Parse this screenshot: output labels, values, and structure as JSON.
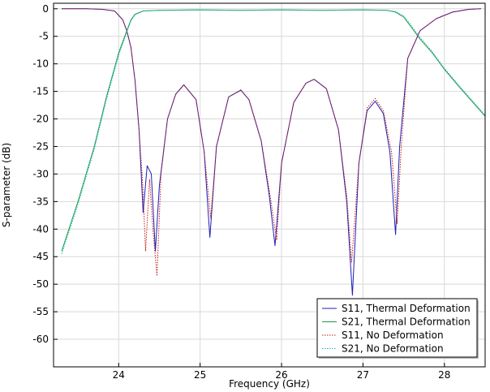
{
  "chart_data": {
    "type": "line",
    "title": "",
    "xlabel": "Frequency (GHz)",
    "ylabel": "S-parameter (dB)",
    "xlim": [
      23.2,
      28.5
    ],
    "ylim": [
      -65,
      1
    ],
    "x_ticks": [
      24,
      25,
      26,
      27,
      28
    ],
    "y_ticks": [
      0,
      -5,
      -10,
      -15,
      -20,
      -25,
      -30,
      -35,
      -40,
      -45,
      -50,
      -55,
      -60
    ],
    "x_tick_labels": [
      "24",
      "25",
      "26",
      "27",
      "28"
    ],
    "y_tick_labels": [
      "0",
      "-5",
      "-10",
      "-15",
      "-20",
      "-25",
      "-30",
      "-35",
      "-40",
      "-45",
      "-50",
      "-55",
      "-60"
    ],
    "grid": true,
    "legend_position": "bottom-right",
    "series": [
      {
        "name": "S11, Thermal Deformation",
        "color": "#1f1fb4",
        "style": "solid",
        "x": [
          23.3,
          23.6,
          23.8,
          23.95,
          24.05,
          24.1,
          24.15,
          24.2,
          24.25,
          24.3,
          24.35,
          24.4,
          24.45,
          24.5,
          24.6,
          24.7,
          24.8,
          24.95,
          25.05,
          25.12,
          25.2,
          25.35,
          25.5,
          25.6,
          25.75,
          25.85,
          25.92,
          26.0,
          26.15,
          26.3,
          26.4,
          26.55,
          26.7,
          26.8,
          26.87,
          26.95,
          27.05,
          27.15,
          27.25,
          27.33,
          27.4,
          27.45,
          27.55,
          27.7,
          27.9,
          28.1,
          28.3,
          28.45
        ],
        "y": [
          0,
          0,
          -0.1,
          -0.4,
          -2,
          -4,
          -7,
          -13,
          -22,
          -37,
          -28.5,
          -30,
          -44,
          -32,
          -20,
          -15.5,
          -13.8,
          -16.5,
          -26,
          -41.5,
          -25,
          -16,
          -14.8,
          -16.5,
          -24,
          -34,
          -43,
          -28,
          -17,
          -13.5,
          -12.8,
          -14.5,
          -22,
          -35,
          -52,
          -28,
          -18.5,
          -16.8,
          -19,
          -26,
          -41,
          -25,
          -9,
          -4,
          -1.8,
          -0.6,
          -0.1,
          0
        ]
      },
      {
        "name": "S21, Thermal Deformation",
        "color": "#1e9a46",
        "style": "solid",
        "x": [
          23.3,
          23.5,
          23.7,
          23.85,
          24.0,
          24.1,
          24.15,
          24.2,
          24.3,
          24.5,
          25.0,
          25.5,
          26.0,
          26.5,
          27.0,
          27.3,
          27.4,
          27.5,
          27.6,
          27.7,
          27.85,
          28.0,
          28.2,
          28.5
        ],
        "y": [
          -44,
          -35,
          -25,
          -16,
          -8,
          -4,
          -2,
          -1,
          -0.4,
          -0.3,
          -0.2,
          -0.3,
          -0.2,
          -0.3,
          -0.2,
          -0.3,
          -0.6,
          -1.5,
          -3.5,
          -5.5,
          -8,
          -11,
          -14.5,
          -19.5
        ]
      },
      {
        "name": "S11, No Deformation",
        "color": "#c41a1a",
        "style": "dotted",
        "x": [
          23.3,
          23.6,
          23.8,
          23.95,
          24.05,
          24.1,
          24.15,
          24.2,
          24.25,
          24.3,
          24.33,
          24.38,
          24.42,
          24.47,
          24.52,
          24.6,
          24.7,
          24.8,
          24.95,
          25.05,
          25.13,
          25.2,
          25.35,
          25.5,
          25.6,
          25.75,
          25.85,
          25.94,
          26.0,
          26.15,
          26.3,
          26.4,
          26.55,
          26.7,
          26.8,
          26.86,
          26.95,
          27.05,
          27.15,
          27.25,
          27.35,
          27.42,
          27.47,
          27.55,
          27.7,
          27.9,
          28.1,
          28.3,
          28.45
        ],
        "y": [
          0,
          0,
          -0.1,
          -0.4,
          -2,
          -4,
          -7,
          -13,
          -22,
          -33,
          -44,
          -31,
          -40,
          -48.5,
          -30,
          -20,
          -15.5,
          -13.8,
          -16.5,
          -26,
          -38,
          -25,
          -16,
          -14.7,
          -16.5,
          -24,
          -33,
          -42,
          -28,
          -17,
          -13.5,
          -12.8,
          -14.5,
          -22,
          -34,
          -46,
          -28,
          -18,
          -16.3,
          -18.5,
          -26,
          -39,
          -25,
          -9,
          -4,
          -1.8,
          -0.6,
          -0.1,
          0
        ]
      },
      {
        "name": "S21, No Deformation",
        "color": "#20b8b8",
        "style": "dotted",
        "x": [
          23.3,
          23.5,
          23.7,
          23.85,
          24.0,
          24.1,
          24.15,
          24.2,
          24.3,
          24.5,
          25.0,
          25.5,
          26.0,
          26.5,
          27.0,
          27.3,
          27.4,
          27.5,
          27.6,
          27.7,
          27.85,
          28.0,
          28.2,
          28.5
        ],
        "y": [
          -44.5,
          -35.5,
          -25.5,
          -16.5,
          -8.5,
          -4.3,
          -2.2,
          -1.1,
          -0.4,
          -0.3,
          -0.2,
          -0.3,
          -0.2,
          -0.3,
          -0.2,
          -0.3,
          -0.5,
          -1.3,
          -3.2,
          -5.2,
          -7.8,
          -10.8,
          -14.3,
          -19.3
        ]
      }
    ]
  }
}
